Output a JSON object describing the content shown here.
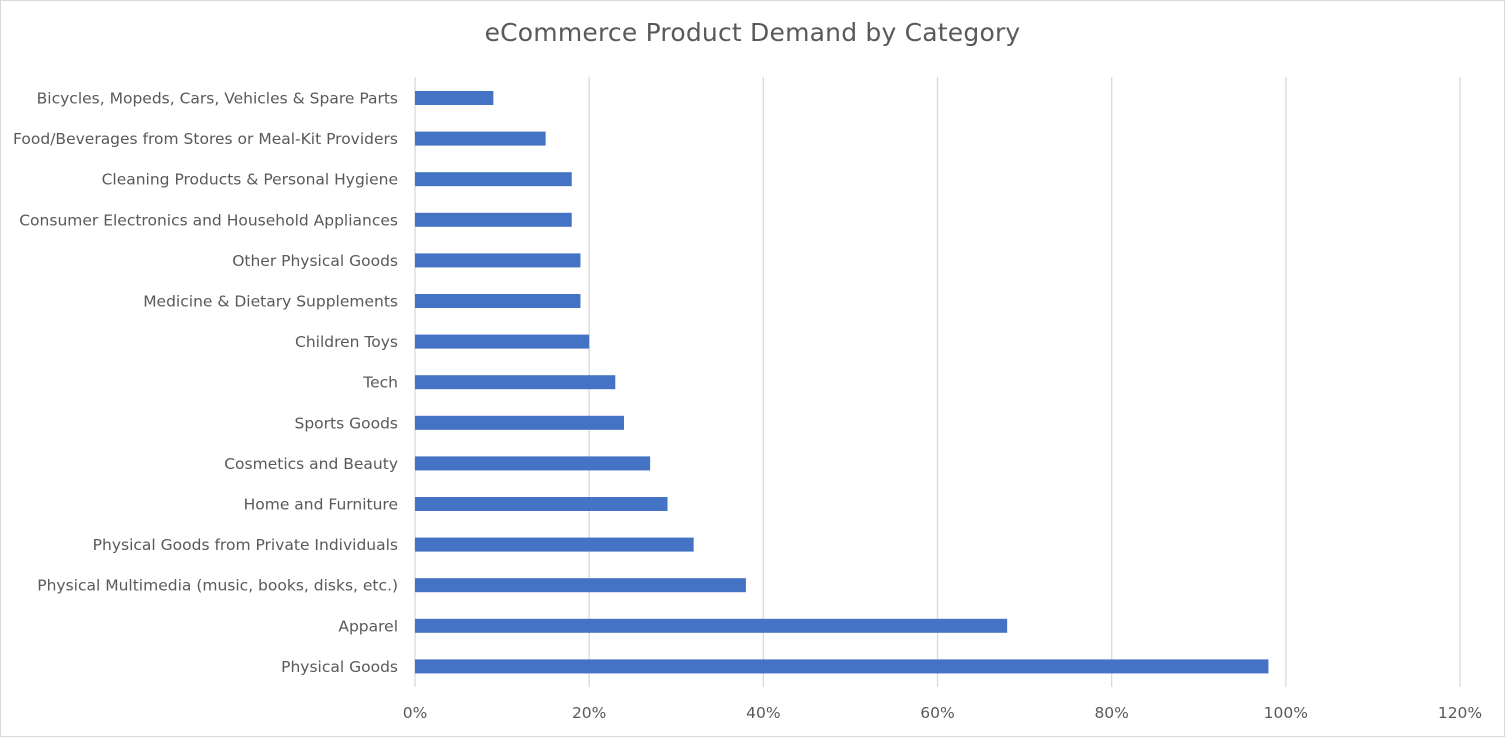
{
  "chart_data": {
    "type": "bar",
    "orientation": "horizontal",
    "title": "eCommerce Product Demand by Category",
    "xlabel": "",
    "ylabel": "",
    "xlim": [
      0,
      1.2
    ],
    "grid": "vertical",
    "legend": "none",
    "bar_color": "#4472c4",
    "grid_color": "#d9d9d9",
    "x_ticks": [
      "0%",
      "20%",
      "40%",
      "60%",
      "80%",
      "100%",
      "120%"
    ],
    "categories": [
      "Bicycles, Mopeds, Cars, Vehicles & Spare Parts",
      "Food/Beverages from Stores or Meal-Kit Providers",
      "Cleaning Products & Personal Hygiene",
      "Consumer Electronics and Household Appliances",
      "Other Physical Goods",
      "Medicine & Dietary Supplements",
      "Children Toys",
      "Tech",
      "Sports Goods",
      "Cosmetics and Beauty",
      "Home and Furniture",
      "Physical Goods from Private Individuals",
      "Physical Multimedia (music, books, disks, etc.)",
      "Apparel",
      "Physical Goods"
    ],
    "values": [
      0.09,
      0.15,
      0.18,
      0.18,
      0.19,
      0.19,
      0.2,
      0.23,
      0.24,
      0.27,
      0.29,
      0.32,
      0.38,
      0.68,
      0.98
    ]
  }
}
